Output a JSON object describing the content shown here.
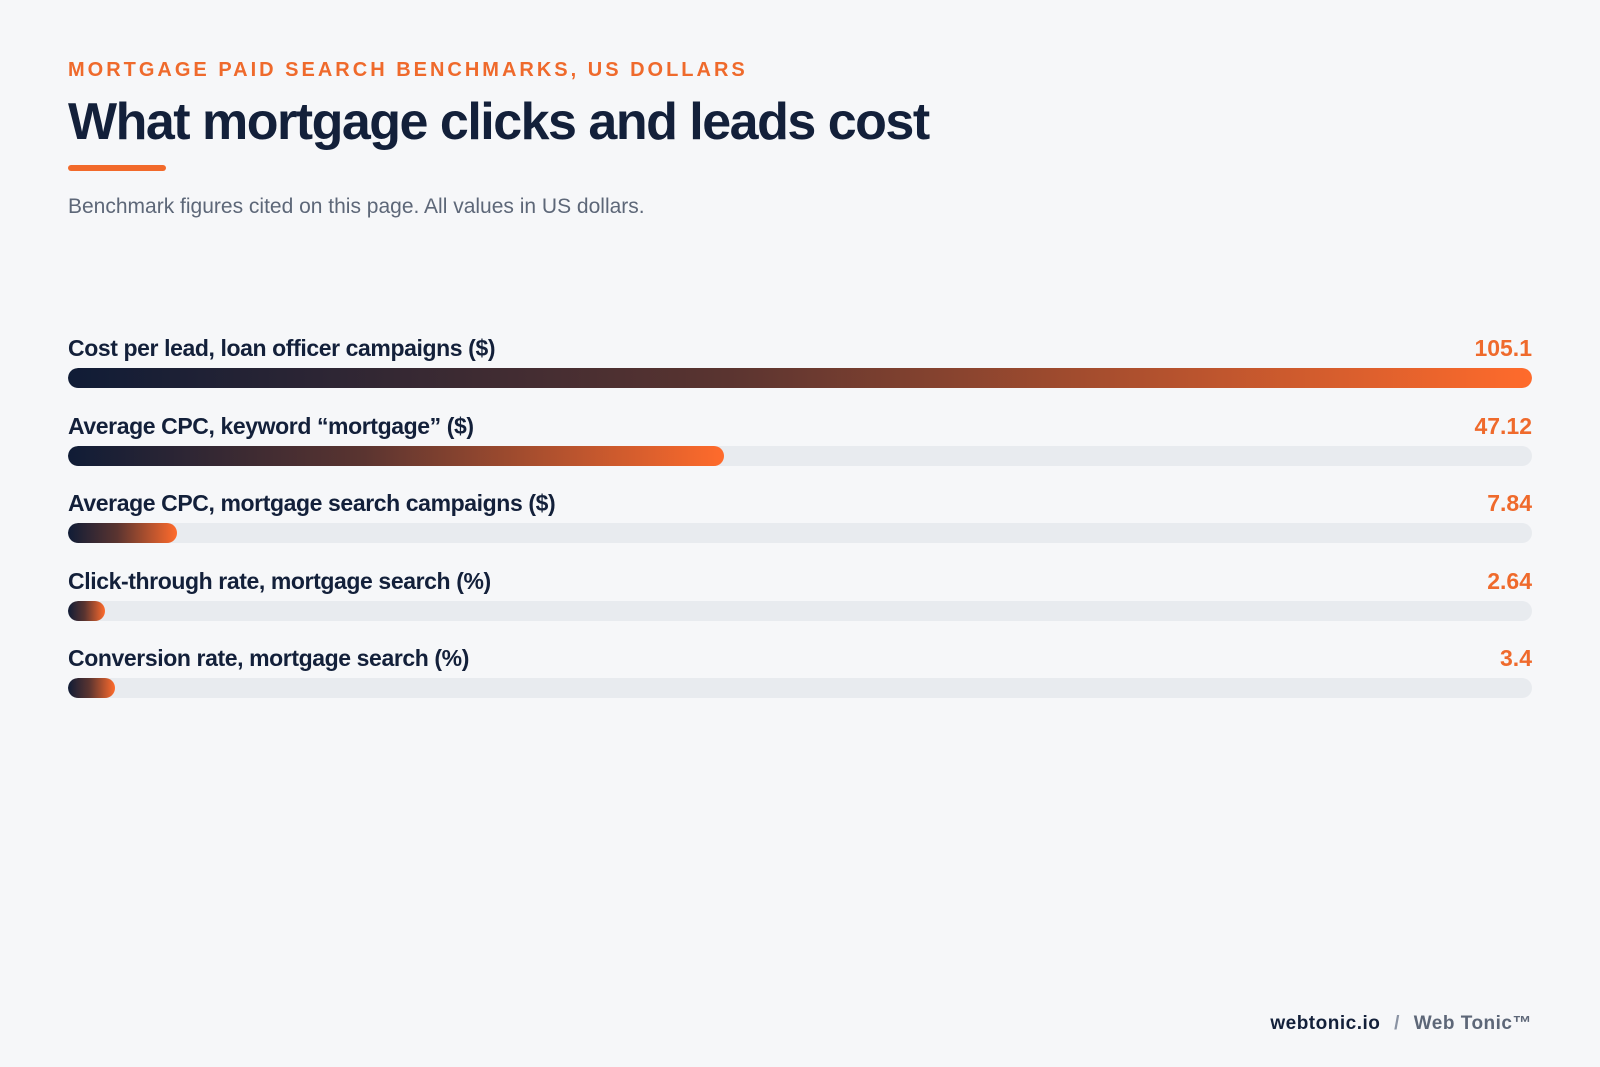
{
  "header": {
    "kicker": "MORTGAGE PAID SEARCH BENCHMARKS, US DOLLARS",
    "title": "What mortgage clicks and leads cost",
    "subtitle": "Benchmark figures cited on this page. All values in US dollars."
  },
  "colors": {
    "accent": "#f26a2b",
    "navy": "#13203a",
    "track": "#e8ebef",
    "background": "#f6f7f9"
  },
  "chart_data": {
    "type": "bar",
    "orientation": "horizontal",
    "categories": [
      "Cost per lead, loan officer campaigns ($)",
      "Average CPC, keyword “mortgage” ($)",
      "Average CPC, mortgage search campaigns ($)",
      "Click-through rate, mortgage search (%)",
      "Conversion rate, mortgage search (%)"
    ],
    "values": [
      105.1,
      47.12,
      7.84,
      2.64,
      3.4
    ],
    "value_labels": [
      "105.1",
      "47.12",
      "7.84",
      "2.64",
      "3.4"
    ],
    "xlim": [
      0,
      105.1
    ],
    "grid": false,
    "legend": "none"
  },
  "footer": {
    "domain": "webtonic.io",
    "separator": "/",
    "brand": "Web Tonic™"
  }
}
